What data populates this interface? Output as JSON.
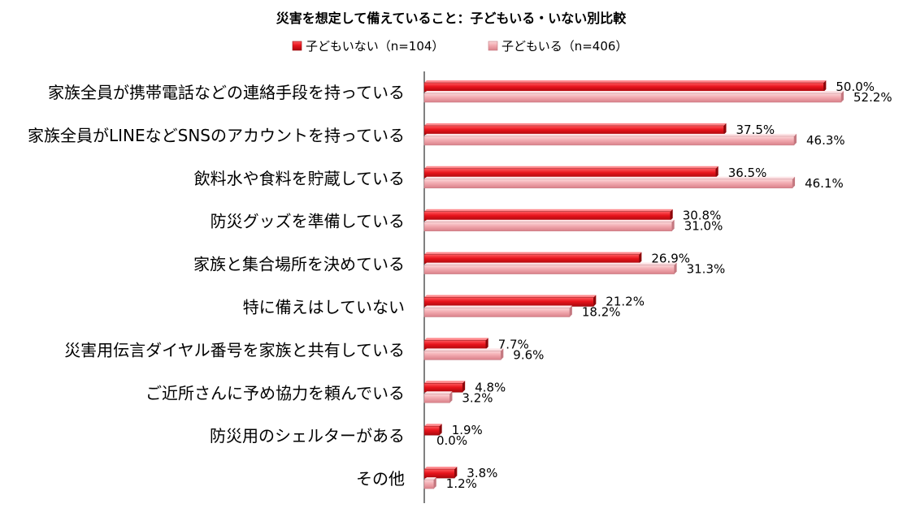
{
  "chart_data": {
    "type": "bar",
    "orientation": "horizontal",
    "title": "災害を想定して備えていること：子どもいる・いない別比較",
    "legend_placement": "top",
    "grid": false,
    "xlim": [
      0,
      60
    ],
    "categories": [
      "家族全員が携帯電話などの連絡手段を持っている",
      "家族全員がLINEなどSNSのアカウントを持っている",
      "飲料水や食料を貯蔵している",
      "防災グッズを準備している",
      "家族と集合場所を決めている",
      "特に備えはしていない",
      "災害用伝言ダイヤル番号を家族と共有している",
      "ご近所さんに予め協力を頼んでいる",
      "防災用のシェルターがある",
      "その他"
    ],
    "series": [
      {
        "name": "子どもいない（n=104）",
        "color": "#e8141c",
        "values": [
          50.0,
          37.5,
          36.5,
          30.8,
          26.9,
          21.2,
          7.7,
          4.8,
          1.9,
          3.8
        ],
        "labels": [
          "50.0%",
          "37.5%",
          "36.5%",
          "30.8%",
          "26.9%",
          "21.2%",
          "7.7%",
          "4.8%",
          "1.9%",
          "3.8%"
        ]
      },
      {
        "name": "子どもいる（n=406）",
        "color": "#f0a6ab",
        "values": [
          52.2,
          46.3,
          46.1,
          31.0,
          31.3,
          18.2,
          9.6,
          3.2,
          0.0,
          1.2
        ],
        "labels": [
          "52.2%",
          "46.3%",
          "46.1%",
          "31.0%",
          "31.3%",
          "18.2%",
          "9.6%",
          "3.2%",
          "0.0%",
          "1.2%"
        ]
      }
    ]
  }
}
